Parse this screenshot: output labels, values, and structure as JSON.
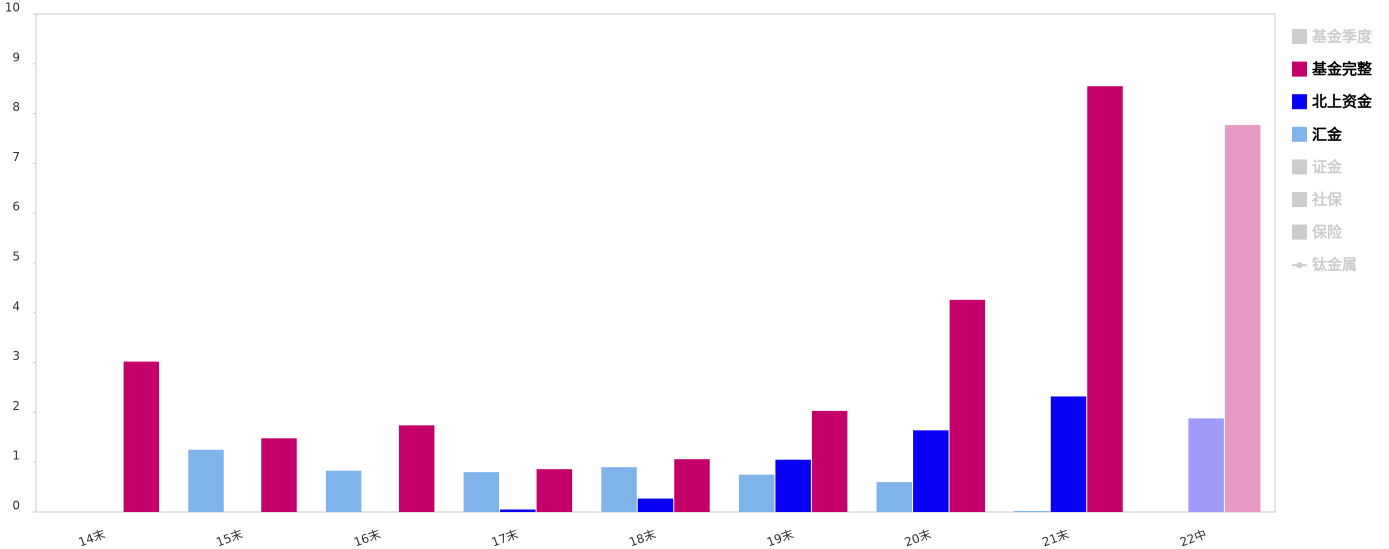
{
  "chart_data": {
    "type": "bar",
    "categories": [
      "14末",
      "15末",
      "16末",
      "17末",
      "18末",
      "19末",
      "20末",
      "21末",
      "22中"
    ],
    "ylim": [
      0,
      10
    ],
    "yticks": [
      0,
      1,
      2,
      3,
      4,
      5,
      6,
      7,
      8,
      9,
      10
    ],
    "legend": "right",
    "series": [
      {
        "name": "基金季度",
        "visible": false
      },
      {
        "name": "基金完整",
        "color": "#c4006a",
        "values": [
          3.02,
          1.48,
          1.74,
          0.86,
          1.06,
          2.03,
          4.26,
          8.55,
          7.77
        ],
        "colors": [
          "#c4006a",
          "#c4006a",
          "#c4006a",
          "#c4006a",
          "#c4006a",
          "#c4006a",
          "#c4006a",
          "#c4006a",
          "#e899c3"
        ]
      },
      {
        "name": "北上资金",
        "color": "#0a00f5",
        "values": [
          null,
          null,
          null,
          0.05,
          0.27,
          1.05,
          1.64,
          2.32,
          1.88
        ],
        "colors": [
          "#0a00f5",
          "#0a00f5",
          "#0a00f5",
          "#0a00f5",
          "#0a00f5",
          "#0a00f5",
          "#0a00f5",
          "#0a00f5",
          "#a09af8"
        ]
      },
      {
        "name": "汇金",
        "color": "#7eb4ea",
        "values": [
          null,
          1.25,
          0.83,
          0.8,
          0.9,
          0.75,
          0.6,
          0.02,
          null
        ]
      },
      {
        "name": "证金",
        "visible": false
      },
      {
        "name": "社保",
        "visible": false
      },
      {
        "name": "保险",
        "visible": false
      },
      {
        "name": "钛金属",
        "visible": false,
        "marker": "line"
      }
    ]
  }
}
